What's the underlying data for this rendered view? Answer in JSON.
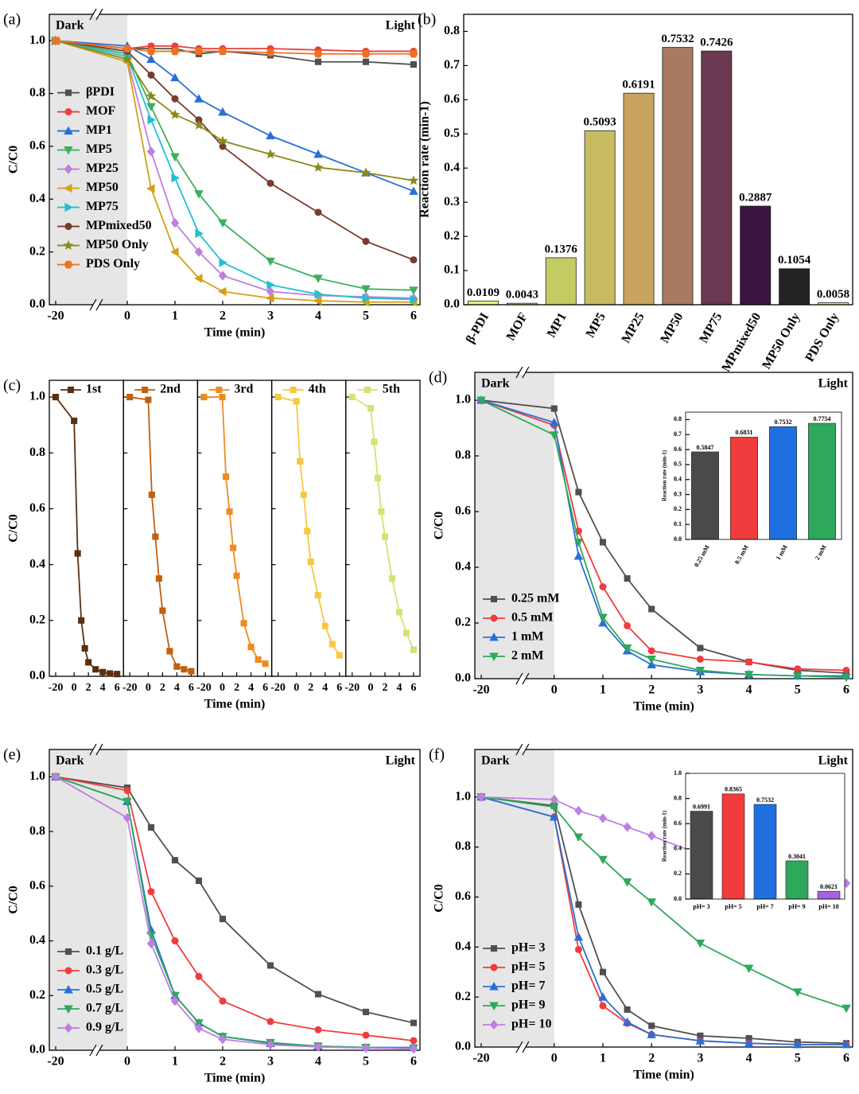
{
  "chart_data": [
    {
      "type": "line",
      "label": "(a)",
      "xlabel": "Time (min)",
      "ylabel": "C/C0",
      "annotations": [
        "Dark",
        "Light"
      ],
      "x": [
        -20,
        0,
        0.5,
        1,
        1.5,
        2,
        3,
        4,
        5,
        6
      ],
      "xlim": [
        -20,
        6
      ],
      "xticks": [
        -20,
        0,
        1,
        2,
        3,
        4,
        5,
        6
      ],
      "ylim": [
        0,
        1.1
      ],
      "yticks": [
        {
          "value": 0,
          "label": "0.0"
        },
        0.2,
        0.4,
        0.6,
        0.8,
        {
          "value": 1,
          "label": "1.0"
        }
      ],
      "axis_break": true,
      "dark_shading": true,
      "legend": "left",
      "series": [
        {
          "name": "βPDI",
          "color": "#505050",
          "marker": "square",
          "values": [
            1.0,
            0.97,
            0.97,
            0.97,
            0.95,
            0.96,
            0.945,
            0.92,
            0.92,
            0.91
          ]
        },
        {
          "name": "MOF",
          "color": "#e8403c",
          "marker": "circle",
          "values": [
            1.0,
            0.97,
            0.98,
            0.98,
            0.97,
            0.97,
            0.97,
            0.965,
            0.96,
            0.96
          ]
        },
        {
          "name": "MP1",
          "color": "#2a6fd6",
          "marker": "triangle",
          "values": [
            1.0,
            0.98,
            0.93,
            0.86,
            0.78,
            0.73,
            0.64,
            0.57,
            0.5,
            0.43
          ]
        },
        {
          "name": "MP5",
          "color": "#3cb05c",
          "marker": "triangle-down",
          "values": [
            1.0,
            0.95,
            0.75,
            0.56,
            0.42,
            0.31,
            0.165,
            0.1,
            0.06,
            0.055
          ]
        },
        {
          "name": "MP25",
          "color": "#c07ee0",
          "marker": "diamond",
          "values": [
            1.0,
            0.93,
            0.58,
            0.31,
            0.2,
            0.11,
            0.05,
            0.035,
            0.03,
            0.025
          ]
        },
        {
          "name": "MP50",
          "color": "#d4a017",
          "marker": "triangle-left",
          "values": [
            1.0,
            0.92,
            0.44,
            0.2,
            0.1,
            0.05,
            0.025,
            0.015,
            0.01,
            0.01
          ]
        },
        {
          "name": "MP75",
          "color": "#20c0d0",
          "marker": "triangle-right",
          "values": [
            1.0,
            0.94,
            0.7,
            0.48,
            0.27,
            0.16,
            0.075,
            0.04,
            0.025,
            0.02
          ]
        },
        {
          "name": "MPmixed50",
          "color": "#7a3b2e",
          "marker": "circle",
          "values": [
            1.0,
            0.96,
            0.87,
            0.78,
            0.7,
            0.6,
            0.46,
            0.35,
            0.24,
            0.17
          ]
        },
        {
          "name": "MP50 Only",
          "color": "#8a8a1a",
          "marker": "star",
          "values": [
            1.0,
            0.93,
            0.79,
            0.72,
            0.68,
            0.62,
            0.57,
            0.52,
            0.5,
            0.47
          ]
        },
        {
          "name": "PDS Only",
          "color": "#f07020",
          "marker": "hexagon",
          "values": [
            1.0,
            0.97,
            0.96,
            0.96,
            0.96,
            0.96,
            0.955,
            0.95,
            0.95,
            0.95
          ]
        }
      ]
    },
    {
      "type": "bar",
      "label": "(b)",
      "ylabel": "Reaction rate (min-1)",
      "rotate_labels": true,
      "categories": [
        "β-PDI",
        "MOF",
        "MP1",
        "MP5",
        "MP25",
        "MP50",
        "MP75",
        "MPmixed50",
        "MP50 Only",
        "PDS Only"
      ],
      "values": [
        0.0109,
        0.0043,
        0.1376,
        0.5093,
        0.6191,
        0.7532,
        0.7426,
        0.2887,
        0.1054,
        0.0058
      ],
      "colors": [
        "#e6f07a",
        "#d2e07a",
        "#c2cc62",
        "#c8bc62",
        "#c9a45e",
        "#a87a62",
        "#6a3850",
        "#3a1540",
        "#222222",
        "#e6f07a"
      ],
      "ylim": [
        0,
        0.85
      ],
      "yticks": [
        {
          "value": 0,
          "label": "0.0"
        },
        0.1,
        0.2,
        0.3,
        0.4,
        0.5,
        0.6,
        0.7,
        0.8
      ]
    },
    {
      "type": "line",
      "label": "(c)",
      "xlabel": "Time (min)",
      "ylabel": "C/C0",
      "panels": true,
      "x": [
        -20,
        0,
        0.5,
        1,
        1.5,
        2,
        3,
        4,
        5,
        6
      ],
      "xlim": [
        -20,
        6
      ],
      "xticks": [
        -20,
        0,
        2,
        4,
        6
      ],
      "ylim": [
        0,
        1.06
      ],
      "yticks": [
        {
          "value": 0,
          "label": "0.0"
        },
        0.2,
        0.4,
        0.6,
        0.8,
        {
          "value": 1,
          "label": "1.0"
        }
      ],
      "series": [
        {
          "name": "1st",
          "color": "#5a3010",
          "marker": "square",
          "values": [
            1.0,
            0.915,
            0.44,
            0.2,
            0.1,
            0.05,
            0.025,
            0.015,
            0.01,
            0.008
          ]
        },
        {
          "name": "2nd",
          "color": "#c06010",
          "marker": "square",
          "values": [
            1.0,
            0.99,
            0.65,
            0.5,
            0.35,
            0.235,
            0.09,
            0.035,
            0.025,
            0.018
          ]
        },
        {
          "name": "3rd",
          "color": "#f08a20",
          "marker": "square",
          "values": [
            1.0,
            1.0,
            0.715,
            0.59,
            0.46,
            0.36,
            0.19,
            0.105,
            0.06,
            0.045
          ]
        },
        {
          "name": "4th",
          "color": "#f5c842",
          "marker": "square",
          "values": [
            1.0,
            0.985,
            0.77,
            0.65,
            0.52,
            0.41,
            0.29,
            0.18,
            0.115,
            0.075
          ]
        },
        {
          "name": "5th",
          "color": "#d8e070",
          "marker": "square",
          "values": [
            1.0,
            0.96,
            0.84,
            0.71,
            0.59,
            0.5,
            0.35,
            0.23,
            0.155,
            0.095
          ]
        }
      ]
    },
    {
      "type": "line",
      "label": "(d)",
      "xlabel": "Time (min)",
      "ylabel": "C/C0",
      "annotations": [
        "Dark",
        "Light"
      ],
      "x": [
        -20,
        0,
        0.5,
        1,
        1.5,
        2,
        3,
        4,
        5,
        6
      ],
      "xlim": [
        -20,
        6
      ],
      "xticks": [
        -20,
        0,
        1,
        2,
        3,
        4,
        5,
        6
      ],
      "ylim": [
        0,
        1.1
      ],
      "yticks": [
        {
          "value": 0,
          "label": "0.0"
        },
        0.2,
        0.4,
        0.6,
        0.8,
        {
          "value": 1,
          "label": "1.0"
        }
      ],
      "axis_break": true,
      "dark_shading": true,
      "legend": "lower left",
      "series": [
        {
          "name": "0.25 mM",
          "color": "#505050",
          "marker": "square",
          "values": [
            1.0,
            0.97,
            0.67,
            0.49,
            0.36,
            0.25,
            0.11,
            0.06,
            0.03,
            0.02
          ]
        },
        {
          "name": "0.5 mM",
          "color": "#f03c3c",
          "marker": "circle",
          "values": [
            1.0,
            0.91,
            0.53,
            0.33,
            0.19,
            0.1,
            0.07,
            0.06,
            0.035,
            0.03
          ]
        },
        {
          "name": "1 mM",
          "color": "#2a6fd6",
          "marker": "triangle",
          "values": [
            1.0,
            0.92,
            0.44,
            0.2,
            0.1,
            0.05,
            0.025,
            0.015,
            0.01,
            0.01
          ]
        },
        {
          "name": "2 mM",
          "color": "#2ea85a",
          "marker": "triangle-down",
          "values": [
            1.0,
            0.875,
            0.49,
            0.22,
            0.11,
            0.07,
            0.03,
            0.015,
            0.01,
            0.005
          ]
        }
      ],
      "inset": {
        "type": "bar",
        "ylabel": "Reaction rate (min-1)",
        "rotate_labels": true,
        "categories": [
          "0.25 mM",
          "0.5 mM",
          "1 mM",
          "2 mM"
        ],
        "values": [
          0.5847,
          0.6831,
          0.7532,
          0.7754
        ],
        "colors": [
          "#4a4a4a",
          "#f03c3c",
          "#1f6fe0",
          "#2ea85a"
        ],
        "ylim": [
          0,
          0.85
        ],
        "yticks": [
          {
            "value": 0,
            "label": "0.0"
          },
          0.1,
          0.2,
          0.3,
          0.4,
          0.5,
          0.6,
          0.7,
          0.8
        ]
      }
    },
    {
      "type": "line",
      "label": "(e)",
      "xlabel": "Time (min)",
      "ylabel": "C/C0",
      "annotations": [
        "Dark",
        "Light"
      ],
      "x": [
        -20,
        0,
        0.5,
        1,
        1.5,
        2,
        3,
        4,
        5,
        6
      ],
      "xlim": [
        -20,
        6
      ],
      "xticks": [
        -20,
        0,
        1,
        2,
        3,
        4,
        5,
        6
      ],
      "ylim": [
        0,
        1.1
      ],
      "yticks": [
        {
          "value": 0,
          "label": "0.0"
        },
        0.2,
        0.4,
        0.6,
        0.8,
        {
          "value": 1,
          "label": "1.0"
        }
      ],
      "axis_break": true,
      "dark_shading": true,
      "legend": "lower left",
      "series": [
        {
          "name": "0.1 g/L",
          "color": "#505050",
          "marker": "square",
          "values": [
            1.0,
            0.96,
            0.815,
            0.695,
            0.62,
            0.48,
            0.31,
            0.205,
            0.14,
            0.1
          ]
        },
        {
          "name": "0.3 g/L",
          "color": "#f03c3c",
          "marker": "circle",
          "values": [
            1.0,
            0.95,
            0.58,
            0.4,
            0.27,
            0.18,
            0.105,
            0.075,
            0.055,
            0.035
          ]
        },
        {
          "name": "0.5 g/L",
          "color": "#2a6fd6",
          "marker": "triangle",
          "values": [
            1.0,
            0.91,
            0.44,
            0.2,
            0.1,
            0.05,
            0.025,
            0.015,
            0.01,
            0.01
          ]
        },
        {
          "name": "0.7 g/L",
          "color": "#2ea85a",
          "marker": "triangle-down",
          "values": [
            1.0,
            0.91,
            0.42,
            0.2,
            0.1,
            0.05,
            0.028,
            0.015,
            0.01,
            0.008
          ]
        },
        {
          "name": "0.9 g/L",
          "color": "#c07ee0",
          "marker": "diamond",
          "values": [
            1.0,
            0.85,
            0.39,
            0.18,
            0.08,
            0.04,
            0.02,
            0.012,
            0.008,
            0.005
          ]
        }
      ]
    },
    {
      "type": "line",
      "label": "(f)",
      "xlabel": "Time (min)",
      "ylabel": "C/C0",
      "annotations": [
        "Dark",
        "Light"
      ],
      "x": [
        -20,
        0,
        0.5,
        1,
        1.5,
        2,
        3,
        4,
        5,
        6
      ],
      "xlim": [
        -20,
        6
      ],
      "xticks": [
        -20,
        0,
        1,
        2,
        3,
        4,
        5,
        6
      ],
      "ylim": [
        0,
        1.19
      ],
      "yticks": [
        {
          "value": 0,
          "label": "0.0"
        },
        0.2,
        0.4,
        0.6,
        0.8,
        {
          "value": 1,
          "label": "1.0"
        }
      ],
      "axis_break": true,
      "dark_shading": true,
      "legend": "lower left",
      "series": [
        {
          "name": "pH= 3",
          "color": "#505050",
          "marker": "square",
          "values": [
            1.0,
            0.965,
            0.57,
            0.3,
            0.15,
            0.085,
            0.045,
            0.035,
            0.02,
            0.015
          ]
        },
        {
          "name": "pH= 5",
          "color": "#f03c3c",
          "marker": "circle",
          "values": [
            1.0,
            0.92,
            0.39,
            0.165,
            0.095,
            0.05,
            0.025,
            0.015,
            0.01,
            0.01
          ]
        },
        {
          "name": "pH= 7",
          "color": "#2a6fd6",
          "marker": "triangle",
          "values": [
            1.0,
            0.92,
            0.44,
            0.2,
            0.1,
            0.05,
            0.025,
            0.015,
            0.01,
            0.01
          ]
        },
        {
          "name": "pH= 9",
          "color": "#2ea85a",
          "marker": "triangle-down",
          "values": [
            1.0,
            0.96,
            0.84,
            0.75,
            0.66,
            0.58,
            0.415,
            0.315,
            0.22,
            0.155
          ]
        },
        {
          "name": "pH= 10",
          "color": "#c07ee0",
          "marker": "diamond",
          "values": [
            1.0,
            0.99,
            0.945,
            0.915,
            0.88,
            0.845,
            0.77,
            0.72,
            0.69,
            0.655
          ]
        }
      ],
      "inset": {
        "type": "bar",
        "ylabel": "Reaction rate (min-1)",
        "categories": [
          "pH= 3",
          "pH= 5",
          "pH= 7",
          "pH= 9",
          "pH= 10"
        ],
        "values": [
          0.6991,
          0.8365,
          0.7532,
          0.3041,
          0.0621
        ],
        "colors": [
          "#4a4a4a",
          "#f03c3c",
          "#1f6fe0",
          "#2ea85a",
          "#a860e0"
        ],
        "ylim": [
          0,
          1.0
        ],
        "yticks": [
          {
            "value": 0,
            "label": "0.0"
          },
          0.2,
          0.4,
          0.6,
          0.8,
          {
            "value": 1,
            "label": "1.0"
          }
        ]
      }
    }
  ]
}
